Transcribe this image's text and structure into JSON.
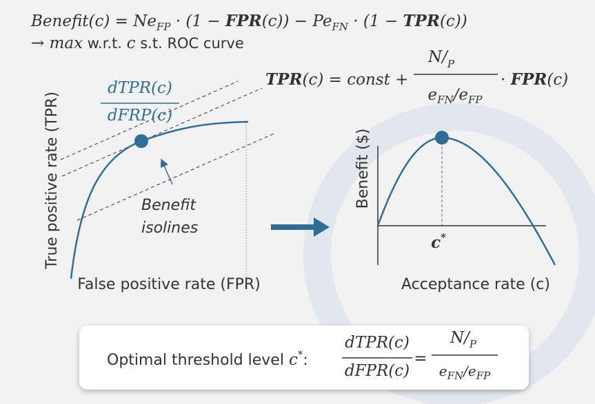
{
  "benefit_formula": {
    "line1": [
      "Benefit(c) = Ne",
      "FP",
      " · (1 − ",
      "FPR",
      "(c))  − Pe",
      "FN",
      " · (1 − ",
      "TPR",
      "(c))"
    ],
    "line2": [
      "→ ",
      "max",
      " w.r.t. ",
      "c",
      " s.t. ROC curve"
    ]
  },
  "isoline_formula": {
    "left": [
      "TPR",
      "(c) = const + "
    ],
    "numerator": [
      "N/",
      "P"
    ],
    "denominator": [
      "e",
      "FN",
      "/e",
      "FP"
    ],
    "right": [
      " · ",
      "FPR",
      "(c)"
    ]
  },
  "roc_panel": {
    "y_label": "True positive rate (TPR)",
    "x_label": "False positive rate (FPR)",
    "slope_numerator": "dTPR(c)",
    "slope_denominator": "dFRP(c)",
    "annotation": [
      "Benefit",
      "isolines"
    ]
  },
  "benefit_panel": {
    "y_label": "Benefit ($)",
    "x_label": "Acceptance rate (c)",
    "marker": [
      "c",
      "*"
    ]
  },
  "result_box": {
    "text": [
      "Optimal threshold level ",
      "c",
      "*",
      ":"
    ],
    "lhs_numerator": "dTPR(c)",
    "lhs_denominator": "dFPR(c)",
    "equals": "=",
    "rhs_numerator": [
      "N/",
      "P"
    ],
    "rhs_denominator": [
      "e",
      "FN",
      "/e",
      "FP"
    ]
  }
}
